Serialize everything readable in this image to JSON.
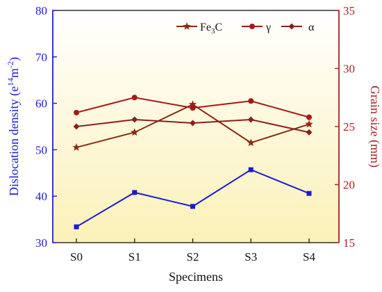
{
  "chart_data": {
    "type": "line",
    "categories": [
      "S0",
      "S1",
      "S2",
      "S3",
      "S4"
    ],
    "xlabel": "Specimens",
    "y_left": {
      "label_main": "Dislocation density (e",
      "label_sup1": "14",
      "label_mid": "m",
      "label_sup2": "-2",
      "label_end": ")",
      "lim": [
        30,
        80
      ],
      "ticks": [
        30,
        40,
        50,
        60,
        70,
        80
      ],
      "tick_labels": [
        "30",
        "40",
        "50",
        "60",
        "70",
        "80"
      ],
      "color": "#1a1ad6"
    },
    "y_right": {
      "label": "Grain size (mm)",
      "lim": [
        15,
        35
      ],
      "ticks": [
        15,
        20,
        25,
        30,
        35
      ],
      "tick_labels": [
        "15",
        "20",
        "25",
        "30",
        "35"
      ],
      "color": "#a82020"
    },
    "series": [
      {
        "axis": "left",
        "marker": "square",
        "color": "#1a1ad6",
        "values": [
          33.4,
          40.8,
          37.8,
          45.7,
          40.6
        ]
      },
      {
        "name": "Fe3C",
        "name_main": "Fe",
        "name_sub": "3",
        "name_end": "C",
        "axis": "right",
        "marker": "star",
        "color": "#8b2a12",
        "values": [
          23.2,
          24.5,
          26.9,
          23.6,
          25.2
        ]
      },
      {
        "name": "γ",
        "axis": "right",
        "marker": "circle",
        "color": "#a81818",
        "values": [
          26.2,
          27.5,
          26.6,
          27.2,
          25.8
        ]
      },
      {
        "name": "α",
        "axis": "right",
        "marker": "diamond",
        "color": "#8a1f1f",
        "values": [
          25.0,
          25.6,
          25.3,
          25.6,
          24.5
        ]
      }
    ],
    "legend_position": "top-right",
    "background_gradient": [
      "#ffffff",
      "#fbf1b8"
    ],
    "grid": false
  }
}
